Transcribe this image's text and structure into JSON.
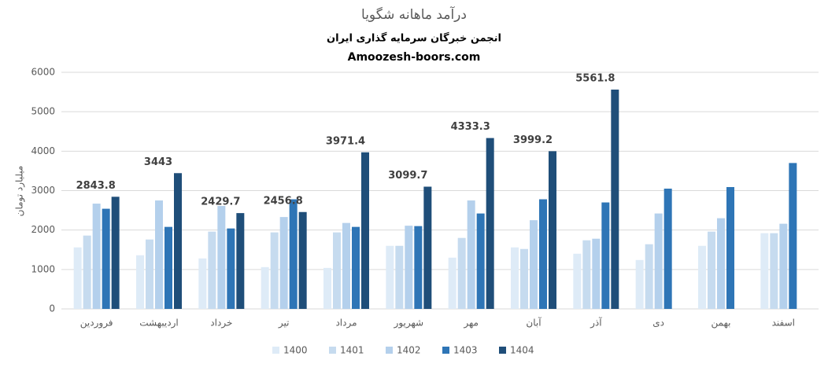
{
  "chart_data": {
    "type": "bar",
    "title": "درآمد ماهانه شگویا",
    "subtitle": [
      "انجمن خبرگان سرمایه گذاری ایران",
      "Amoozesh-boors.com"
    ],
    "y_label": "میلیارد تومان",
    "categories": [
      "فروردین",
      "اردیبهشت",
      "خرداد",
      "تیر",
      "مرداد",
      "شهریور",
      "مهر",
      "آبان",
      "آذر",
      "دی",
      "بهمن",
      "اسفند"
    ],
    "series": [
      {
        "name": "1400",
        "color": "#deebf7",
        "values": [
          1560,
          1360,
          1280,
          1060,
          1040,
          1600,
          1300,
          1560,
          1400,
          1240,
          1600,
          1920
        ]
      },
      {
        "name": "1401",
        "color": "#c6dbef",
        "values": [
          1860,
          1760,
          1960,
          1940,
          1940,
          1600,
          1800,
          1520,
          1740,
          1640,
          1960,
          1920
        ]
      },
      {
        "name": "1402",
        "color": "#b4d0ec",
        "values": [
          2670,
          2750,
          2610,
          2330,
          2180,
          2110,
          2750,
          2250,
          1780,
          2420,
          2300,
          2160
        ]
      },
      {
        "name": "1403",
        "color": "#2e75b6",
        "values": [
          2540,
          2080,
          2040,
          2780,
          2080,
          2100,
          2420,
          2780,
          2700,
          3050,
          3090,
          3700
        ]
      },
      {
        "name": "1404",
        "color": "#1f4e79",
        "values": [
          2843.8,
          3443,
          2429.7,
          2456.8,
          3971.4,
          3099.7,
          4333.3,
          3999.2,
          5561.8,
          null,
          null,
          null
        ],
        "data_labels": true
      }
    ],
    "ylim": [
      0,
      6000
    ],
    "yticks": [
      0,
      1000,
      2000,
      3000,
      4000,
      5000,
      6000
    ],
    "grid": true,
    "legend": "bottom"
  }
}
